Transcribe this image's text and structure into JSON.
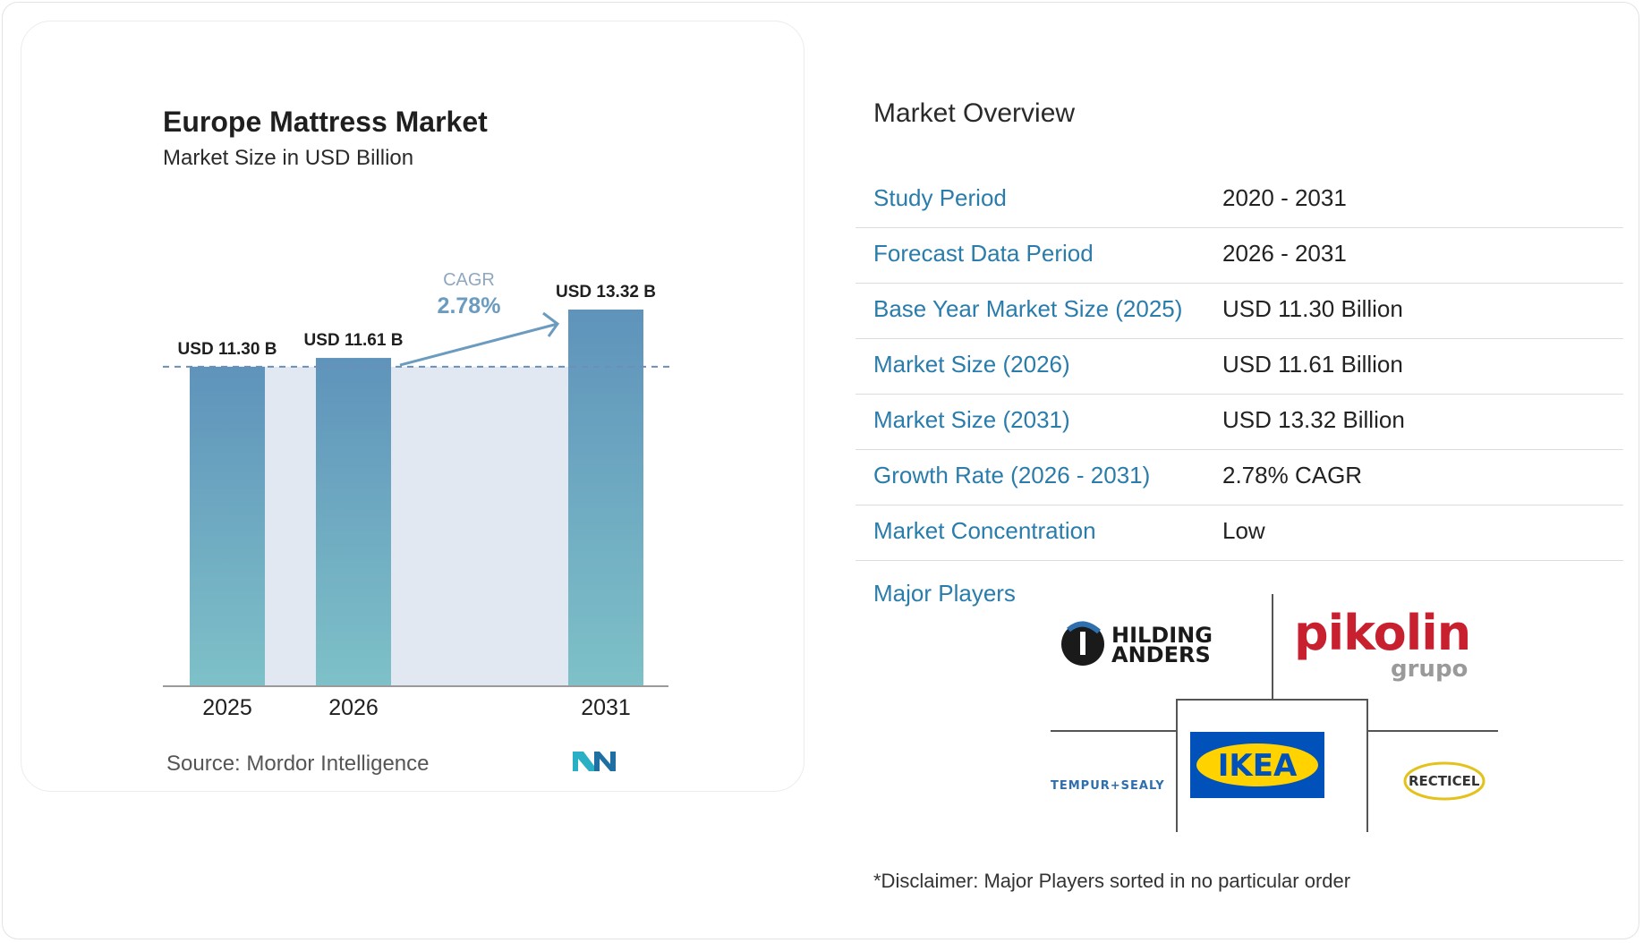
{
  "chart": {
    "title": "Europe Mattress Market",
    "subtitle": "Market Size in USD Billion",
    "source": "Source:  Mordor Intelligence",
    "cagr_label": "CAGR",
    "cagr_value": "2.78%"
  },
  "chart_data": {
    "type": "bar",
    "categories": [
      "2025",
      "2026",
      "2031"
    ],
    "values": [
      11.3,
      11.61,
      13.32
    ],
    "value_labels": [
      "USD 11.30 B",
      "USD 11.61 B",
      "USD 13.32 B"
    ],
    "title": "Europe Mattress Market",
    "subtitle": "Market Size in USD Billion",
    "annotations": [
      "CAGR",
      "2.78%"
    ],
    "colors": {
      "bar_top": "#5f93bb",
      "bar_bottom": "#7ec1c8",
      "band": "#e1e8f1",
      "cagr": "#6b9bbf"
    }
  },
  "overview": {
    "title": "Market Overview",
    "rows": [
      {
        "key": "Study Period",
        "value": "2020 - 2031"
      },
      {
        "key": "Forecast Data Period",
        "value": "2026 - 2031"
      },
      {
        "key": "Base Year Market Size (2025)",
        "value": "USD 11.30 Billion"
      },
      {
        "key": "Market Size (2026)",
        "value": "USD 11.61 Billion"
      },
      {
        "key": "Market Size (2031)",
        "value": "USD 13.32 Billion"
      },
      {
        "key": "Growth Rate (2026 - 2031)",
        "value": "2.78% CAGR"
      },
      {
        "key": "Market Concentration",
        "value": "Low"
      }
    ],
    "players_label": "Major Players",
    "players": [
      {
        "logo": "HILDING ANDERS"
      },
      {
        "logo": "pikolin grupo"
      },
      {
        "logo": "IKEA"
      },
      {
        "logo": "TEMPUR+SEALY"
      },
      {
        "logo": "RECTICEL"
      }
    ],
    "disclaimer": "*Disclaimer: Major Players sorted in no particular order"
  },
  "colors": {
    "accent": "#2a7cab",
    "text": "#222222"
  }
}
